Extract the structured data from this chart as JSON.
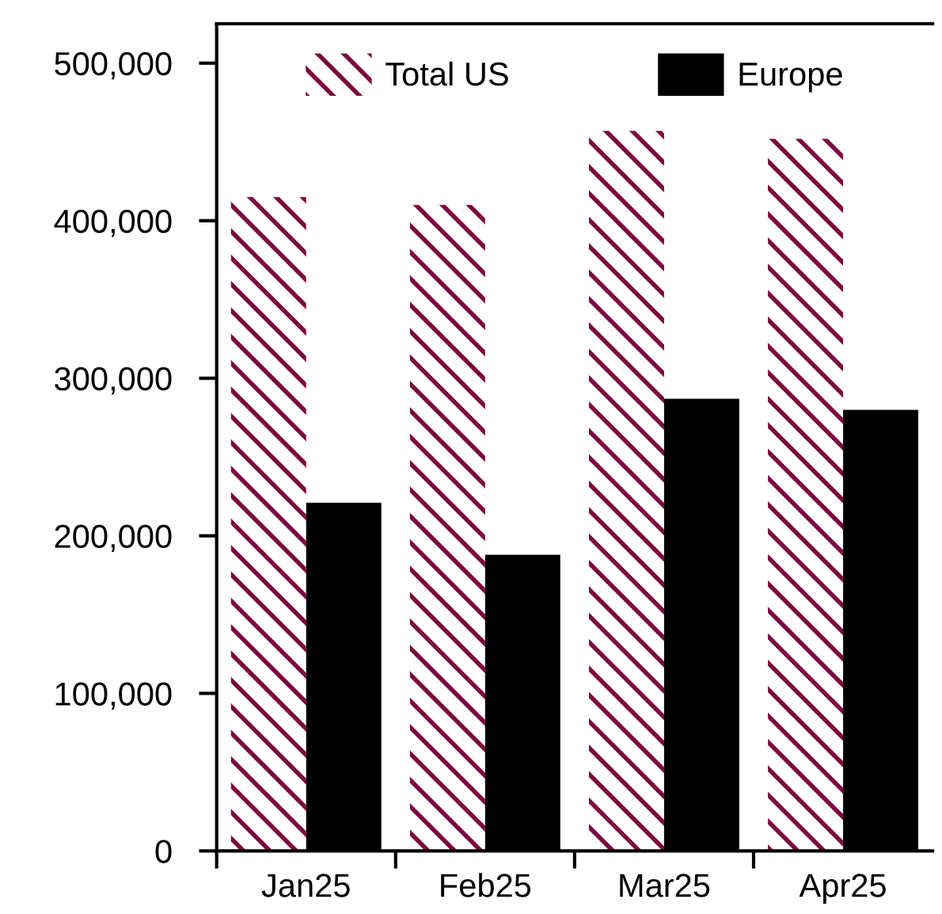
{
  "chart_data": {
    "type": "bar",
    "categories": [
      "Jan25",
      "Feb25",
      "Mar25",
      "Apr25"
    ],
    "series": [
      {
        "name": "Total US",
        "color": "#7b0a3c",
        "values": [
          415000,
          410000,
          457000,
          452000
        ]
      },
      {
        "name": "Europe",
        "color": "#000000",
        "values": [
          221000,
          188000,
          287000,
          280000
        ]
      }
    ],
    "ylim": [
      0,
      525000
    ],
    "yticks": [
      {
        "value": 0,
        "label": "0"
      },
      {
        "value": 100000,
        "label": "100,000"
      },
      {
        "value": 200000,
        "label": "200,000"
      },
      {
        "value": 300000,
        "label": "300,000"
      },
      {
        "value": 400000,
        "label": "400,000"
      },
      {
        "value": 500000,
        "label": "500,000"
      }
    ],
    "grid": false,
    "legend": "top"
  }
}
